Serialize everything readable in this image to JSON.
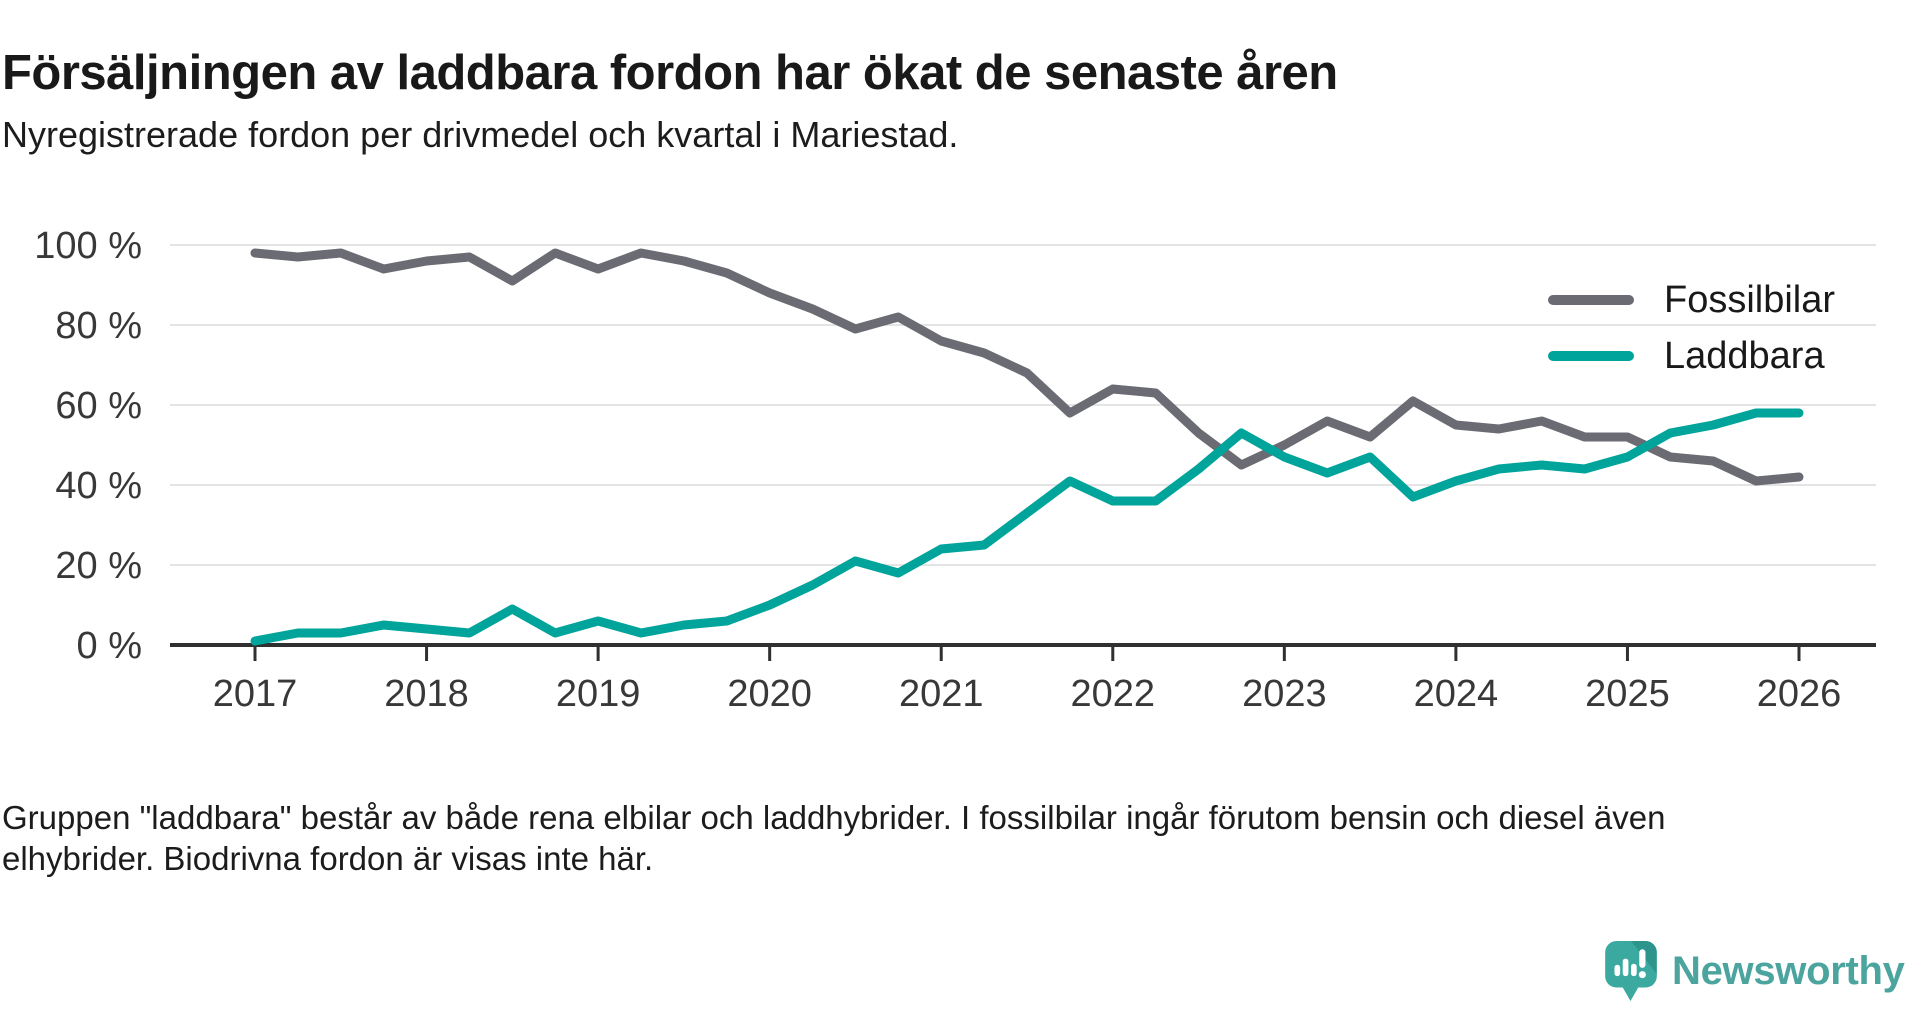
{
  "title": "Försäljningen av laddbara fordon har ökat de senaste åren",
  "subtitle": "Nyregistrerade fordon per drivmedel och kvartal i Mariestad.",
  "footer": {
    "line1": "Gruppen \"laddbara\" består av både rena elbilar och laddhybrider. I fossilbilar ingår förutom bensin och diesel även",
    "line2": "elhybrider. Biodrivna fordon är visas inte här."
  },
  "branding": {
    "name": "Newsworthy",
    "icon": "newsworthy-speech-bubble-bar-chart-icon",
    "text_color": "#4ba49d",
    "icon_color": "#3ba9a0",
    "icon_fold_color": "#2e958c"
  },
  "colors": {
    "title_text": "#191919",
    "axis_text": "#383838",
    "gridline": "#e4e4e4",
    "axis_line": "#303030",
    "fossil_gray": "#6b6b74",
    "laddbara_teal": "#00a49a"
  },
  "chart_data": {
    "type": "line",
    "unit": "percent of newly registered vehicles",
    "frequency": "quarterly",
    "quarters": [
      "2017-Q1",
      "2017-Q2",
      "2017-Q3",
      "2017-Q4",
      "2018-Q1",
      "2018-Q2",
      "2018-Q3",
      "2018-Q4",
      "2019-Q1",
      "2019-Q2",
      "2019-Q3",
      "2019-Q4",
      "2020-Q1",
      "2020-Q2",
      "2020-Q3",
      "2020-Q4",
      "2021-Q1",
      "2021-Q2",
      "2021-Q3",
      "2021-Q4",
      "2022-Q1",
      "2022-Q2",
      "2022-Q3",
      "2022-Q4",
      "2023-Q1",
      "2023-Q2",
      "2023-Q3",
      "2023-Q4",
      "2024-Q1",
      "2024-Q2",
      "2024-Q3",
      "2024-Q4",
      "2025-Q1",
      "2025-Q2",
      "2025-Q3",
      "2025-Q4",
      "2026-Q1"
    ],
    "series": [
      {
        "name": "Fossilbilar",
        "color": "#6b6b74",
        "values": [
          98,
          97,
          98,
          94,
          96,
          97,
          91,
          98,
          94,
          98,
          96,
          93,
          88,
          84,
          79,
          82,
          76,
          73,
          68,
          58,
          64,
          63,
          53,
          45,
          50,
          56,
          52,
          61,
          55,
          54,
          56,
          52,
          52,
          47,
          46,
          41,
          42
        ]
      },
      {
        "name": "Laddbara",
        "color": "#00a49a",
        "values": [
          1,
          3,
          3,
          5,
          4,
          3,
          9,
          3,
          6,
          3,
          5,
          6,
          10,
          15,
          21,
          18,
          24,
          25,
          33,
          41,
          36,
          36,
          44,
          53,
          47,
          43,
          47,
          37,
          41,
          44,
          45,
          44,
          47,
          53,
          55,
          58,
          58
        ]
      }
    ],
    "ylim": [
      0,
      100
    ],
    "y_ticks": [
      {
        "value": 0,
        "label": "0 %"
      },
      {
        "value": 20,
        "label": "20 %"
      },
      {
        "value": 40,
        "label": "40 %"
      },
      {
        "value": 60,
        "label": "60 %"
      },
      {
        "value": 80,
        "label": "80 %"
      },
      {
        "value": 100,
        "label": "100 %"
      }
    ],
    "x_ticks": [
      {
        "label": "2017",
        "quarter_index": 0
      },
      {
        "label": "2018",
        "quarter_index": 4
      },
      {
        "label": "2019",
        "quarter_index": 8
      },
      {
        "label": "2020",
        "quarter_index": 12
      },
      {
        "label": "2021",
        "quarter_index": 16
      },
      {
        "label": "2022",
        "quarter_index": 20
      },
      {
        "label": "2023",
        "quarter_index": 24
      },
      {
        "label": "2024",
        "quarter_index": 28
      },
      {
        "label": "2025",
        "quarter_index": 32
      },
      {
        "label": "2026",
        "quarter_index": 36
      }
    ],
    "grid": "horizontal",
    "legend_position": "top-right"
  }
}
